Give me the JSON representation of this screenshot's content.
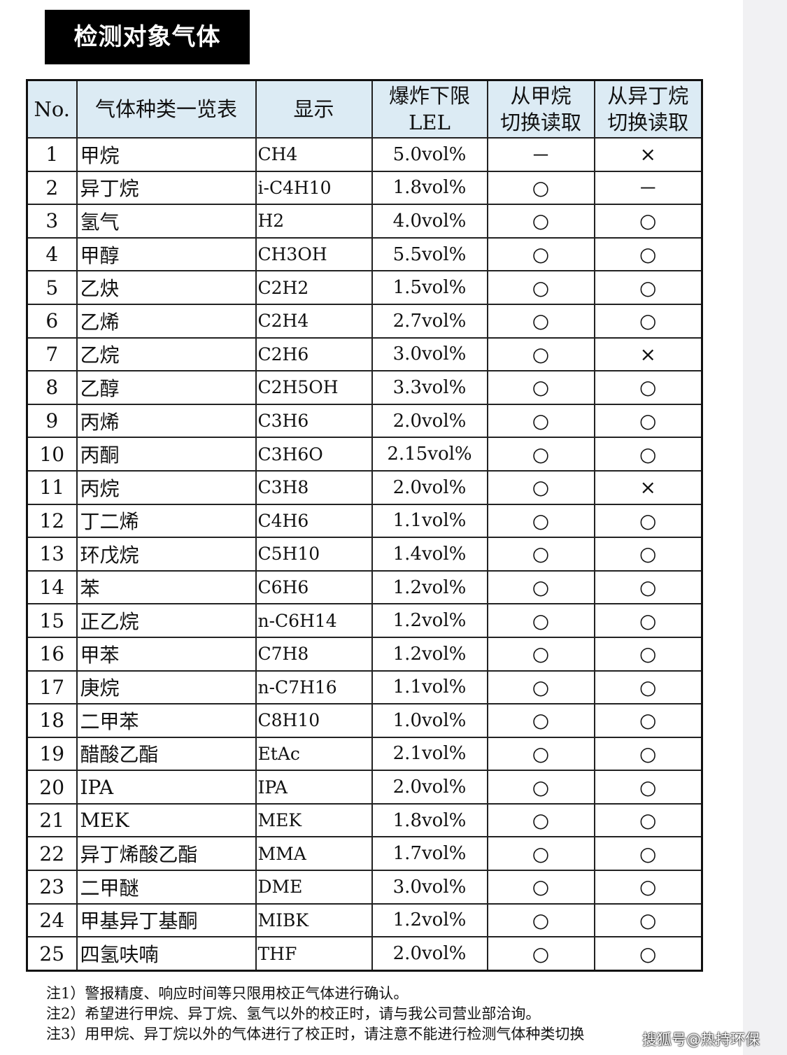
{
  "title": "检测对象气体",
  "headers": [
    "No.",
    "气体种类一览表",
    "显示",
    "爆炸下限\nLEL",
    "从甲烷\n切换读取",
    "从异丁烷\n切换读取"
  ],
  "rows": [
    {
      "no": "1",
      "name": "甲烷",
      "disp": "CH4",
      "lel": "5.0vol%",
      "m": "－",
      "b": "×"
    },
    {
      "no": "2",
      "name": "异丁烷",
      "disp": "i-C4H10",
      "lel": "1.8vol%",
      "m": "○",
      "b": "－"
    },
    {
      "no": "3",
      "name": "氢气",
      "disp": "H2",
      "lel": "4.0vol%",
      "m": "○",
      "b": "○"
    },
    {
      "no": "4",
      "name": "甲醇",
      "disp": "CH3OH",
      "lel": "5.5vol%",
      "m": "○",
      "b": "○"
    },
    {
      "no": "5",
      "name": "乙炔",
      "disp": "C2H2",
      "lel": "1.5vol%",
      "m": "○",
      "b": "○"
    },
    {
      "no": "6",
      "name": "乙烯",
      "disp": "C2H4",
      "lel": "2.7vol%",
      "m": "○",
      "b": "○"
    },
    {
      "no": "7",
      "name": "乙烷",
      "disp": "C2H6",
      "lel": "3.0vol%",
      "m": "○",
      "b": "×"
    },
    {
      "no": "8",
      "name": "乙醇",
      "disp": "C2H5OH",
      "lel": "3.3vol%",
      "m": "○",
      "b": "○"
    },
    {
      "no": "9",
      "name": "丙烯",
      "disp": "C3H6",
      "lel": "2.0vol%",
      "m": "○",
      "b": "○"
    },
    {
      "no": "10",
      "name": "丙酮",
      "disp": "C3H6O",
      "lel": "2.15vol%",
      "m": "○",
      "b": "○"
    },
    {
      "no": "11",
      "name": "丙烷",
      "disp": "C3H8",
      "lel": "2.0vol%",
      "m": "○",
      "b": "×"
    },
    {
      "no": "12",
      "name": "丁二烯",
      "disp": "C4H6",
      "lel": "1.1vol%",
      "m": "○",
      "b": "○"
    },
    {
      "no": "13",
      "name": "环戊烷",
      "disp": "C5H10",
      "lel": "1.4vol%",
      "m": "○",
      "b": "○"
    },
    {
      "no": "14",
      "name": "苯",
      "disp": "C6H6",
      "lel": "1.2vol%",
      "m": "○",
      "b": "○"
    },
    {
      "no": "15",
      "name": "正乙烷",
      "disp": "n-C6H14",
      "lel": "1.2vol%",
      "m": "○",
      "b": "○"
    },
    {
      "no": "16",
      "name": "甲苯",
      "disp": "C7H8",
      "lel": "1.2vol%",
      "m": "○",
      "b": "○"
    },
    {
      "no": "17",
      "name": "庚烷",
      "disp": "n-C7H16",
      "lel": "1.1vol%",
      "m": "○",
      "b": "○"
    },
    {
      "no": "18",
      "name": "二甲苯",
      "disp": "C8H10",
      "lel": "1.0vol%",
      "m": "○",
      "b": "○"
    },
    {
      "no": "19",
      "name": "醋酸乙酯",
      "disp": "EtAc",
      "lel": "2.1vol%",
      "m": "○",
      "b": "○"
    },
    {
      "no": "20",
      "name": "IPA",
      "disp": "IPA",
      "lel": "2.0vol%",
      "m": "○",
      "b": "○"
    },
    {
      "no": "21",
      "name": "MEK",
      "disp": "MEK",
      "lel": "1.8vol%",
      "m": "○",
      "b": "○"
    },
    {
      "no": "22",
      "name": "异丁烯酸乙酯",
      "disp": "MMA",
      "lel": "1.7vol%",
      "m": "○",
      "b": "○"
    },
    {
      "no": "23",
      "name": "二甲醚",
      "disp": "DME",
      "lel": "3.0vol%",
      "m": "○",
      "b": "○"
    },
    {
      "no": "24",
      "name": "甲基异丁基酮",
      "disp": "MIBK",
      "lel": "1.2vol%",
      "m": "○",
      "b": "○"
    },
    {
      "no": "25",
      "name": "四氢呋喃",
      "disp": "THF",
      "lel": "2.0vol%",
      "m": "○",
      "b": "○"
    }
  ],
  "notes": [
    "注1）警报精度、响应时间等只限用校正气体进行确认。",
    "注2）希望进行甲烷、异丁烷、氢气以外的校正时，请与我公司营业部洽询。",
    "注3）用甲烷、异丁烷以外的气体进行了校正时，请注意不能进行检测气体种类切换"
  ],
  "watermark": "搜狐号@热持环保"
}
